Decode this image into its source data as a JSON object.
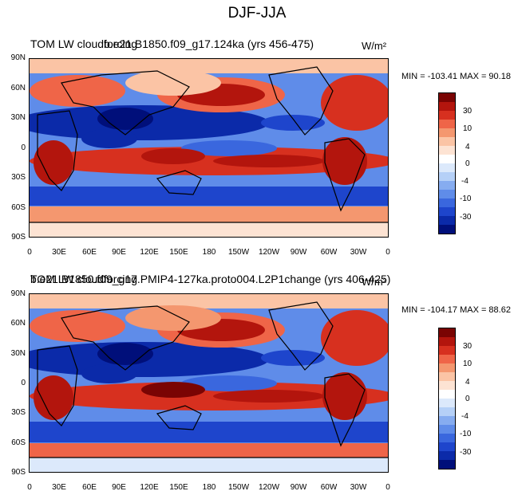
{
  "figure_title": "DJF-JJA",
  "chart_data": [
    {
      "type": "heatmap",
      "title_left": "TOM LW cloudforcing",
      "title_overlap": "b.e21.B1850.f09_g17.124ka (yrs 456-475)",
      "units": "W/m²",
      "min_max_text": "MIN = -103.41  MAX =  90.18",
      "min": -103.41,
      "max": 90.18,
      "x_ticks": [
        "0",
        "30E",
        "60E",
        "90E",
        "120E",
        "150E",
        "180",
        "150W",
        "120W",
        "90W",
        "60W",
        "30W",
        "0"
      ],
      "y_ticks": [
        "90N",
        "60N",
        "30N",
        "0",
        "30S",
        "60S",
        "90S"
      ],
      "colorbar_labels": [
        "30",
        "10",
        "4",
        "0",
        "-4",
        "-10",
        "-30"
      ]
    },
    {
      "type": "heatmap",
      "title_left": "TOM LW cloudforcing",
      "title_overlap": "b.e21.B1850.f09_g17.PMIP4-127ka.proto004.L2P1change (yrs 406-425)",
      "units": "W/m²",
      "min_max_text": "MIN = -104.17  MAX =  88.62",
      "min": -104.17,
      "max": 88.62,
      "x_ticks": [
        "0",
        "30E",
        "60E",
        "90E",
        "120E",
        "150E",
        "180",
        "150W",
        "120W",
        "90W",
        "60W",
        "30W",
        "0"
      ],
      "y_ticks": [
        "90N",
        "60N",
        "30N",
        "0",
        "30S",
        "60S",
        "90S"
      ],
      "colorbar_labels": [
        "30",
        "10",
        "4",
        "0",
        "-4",
        "-10",
        "-30"
      ]
    }
  ],
  "colorbar_colors": [
    "#7a0403",
    "#b3150d",
    "#d7301f",
    "#ef6548",
    "#f4976f",
    "#fbc4a5",
    "#fde3d3",
    "#ffffff",
    "#dce9fb",
    "#b5d0f7",
    "#86acf0",
    "#5f8ce9",
    "#3a67de",
    "#1e45cc",
    "#0b2aa9",
    "#000f7a"
  ]
}
